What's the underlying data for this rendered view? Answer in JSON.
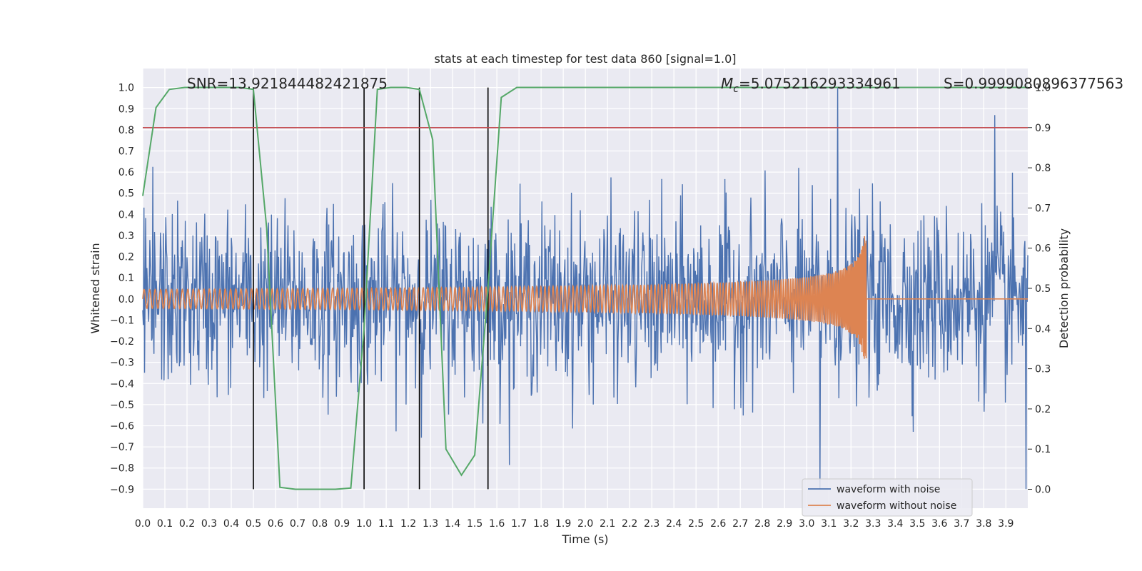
{
  "chart_data": {
    "type": "line",
    "title": "stats at each timestep for test data 860 [signal=1.0]",
    "xlabel": "Time (s)",
    "ylabel": "Whitened strain",
    "y2label": "Detection probability",
    "xlim": [
      0.0,
      3.999
    ],
    "ylim": [
      -0.99,
      1.09
    ],
    "y2lim": [
      -0.047,
      1.047
    ],
    "xticks": [
      "0.0",
      "0.1",
      "0.2",
      "0.3",
      "0.4",
      "0.5",
      "0.6",
      "0.7",
      "0.8",
      "0.9",
      "1.0",
      "1.1",
      "1.2",
      "1.3",
      "1.4",
      "1.5",
      "1.6",
      "1.7",
      "1.8",
      "1.9",
      "2.0",
      "2.1",
      "2.2",
      "2.3",
      "2.4",
      "2.5",
      "2.6",
      "2.7",
      "2.8",
      "2.9",
      "3.0",
      "3.1",
      "3.2",
      "3.3",
      "3.4",
      "3.5",
      "3.6",
      "3.7",
      "3.8",
      "3.9"
    ],
    "yticks": [
      "−0.9",
      "−0.8",
      "−0.7",
      "−0.6",
      "−0.5",
      "−0.4",
      "−0.3",
      "−0.2",
      "−0.1",
      "0.0",
      "0.1",
      "0.2",
      "0.3",
      "0.4",
      "0.5",
      "0.6",
      "0.7",
      "0.8",
      "0.9",
      "1.0"
    ],
    "y2ticks": [
      "0.0",
      "0.1",
      "0.2",
      "0.3",
      "0.4",
      "0.5",
      "0.6",
      "0.7",
      "0.8",
      "0.9",
      "1.0"
    ],
    "grid": true,
    "legend_position": "lower-right",
    "annotations": {
      "snr": "SNR=13.921844482421875",
      "mc_symbol": "M",
      "mc_sub": "c",
      "mc_value": "=5.075216293334961",
      "s": "S=0.9999080896377563"
    },
    "threshold_line": {
      "axis": "right",
      "y": 0.9,
      "color": "#c44e52"
    },
    "vertical_lines": {
      "x": [
        0.5,
        1.0,
        1.25,
        1.56
      ],
      "color": "#000000"
    },
    "series": [
      {
        "name": "waveform with noise",
        "axis": "left",
        "color": "#4c72b0",
        "kind": "noise",
        "x_range": [
          0.0,
          3.999
        ],
        "typical_peak": 0.55,
        "extreme_max": 1.0,
        "extreme_min": -0.9
      },
      {
        "name": "waveform without noise",
        "axis": "left",
        "color": "#dd8452",
        "kind": "chirp",
        "x_range": [
          0.0,
          3.999
        ],
        "start_amplitude": 0.045,
        "peak_amplitude": 0.32,
        "merger_time": 3.27
      },
      {
        "axis": "right",
        "color": "#55a868",
        "kind": "probability",
        "x": [
          0.0,
          0.06,
          0.12,
          0.19,
          0.25,
          0.31,
          0.37,
          0.44,
          0.5,
          0.56,
          0.62,
          0.69,
          0.75,
          0.81,
          0.87,
          0.94,
          1.0,
          1.06,
          1.12,
          1.19,
          1.25,
          1.31,
          1.37,
          1.44,
          1.5,
          1.56,
          1.62,
          1.69,
          1.75,
          3.999
        ],
        "y": [
          0.73,
          0.95,
          0.995,
          1.0,
          1.0,
          1.0,
          1.0,
          1.0,
          0.995,
          0.65,
          0.005,
          0.0,
          0.0,
          0.0,
          0.0,
          0.003,
          0.4,
          0.995,
          1.0,
          1.0,
          0.995,
          0.87,
          0.1,
          0.035,
          0.085,
          0.5,
          0.975,
          1.0,
          1.0,
          1.0
        ]
      }
    ]
  }
}
